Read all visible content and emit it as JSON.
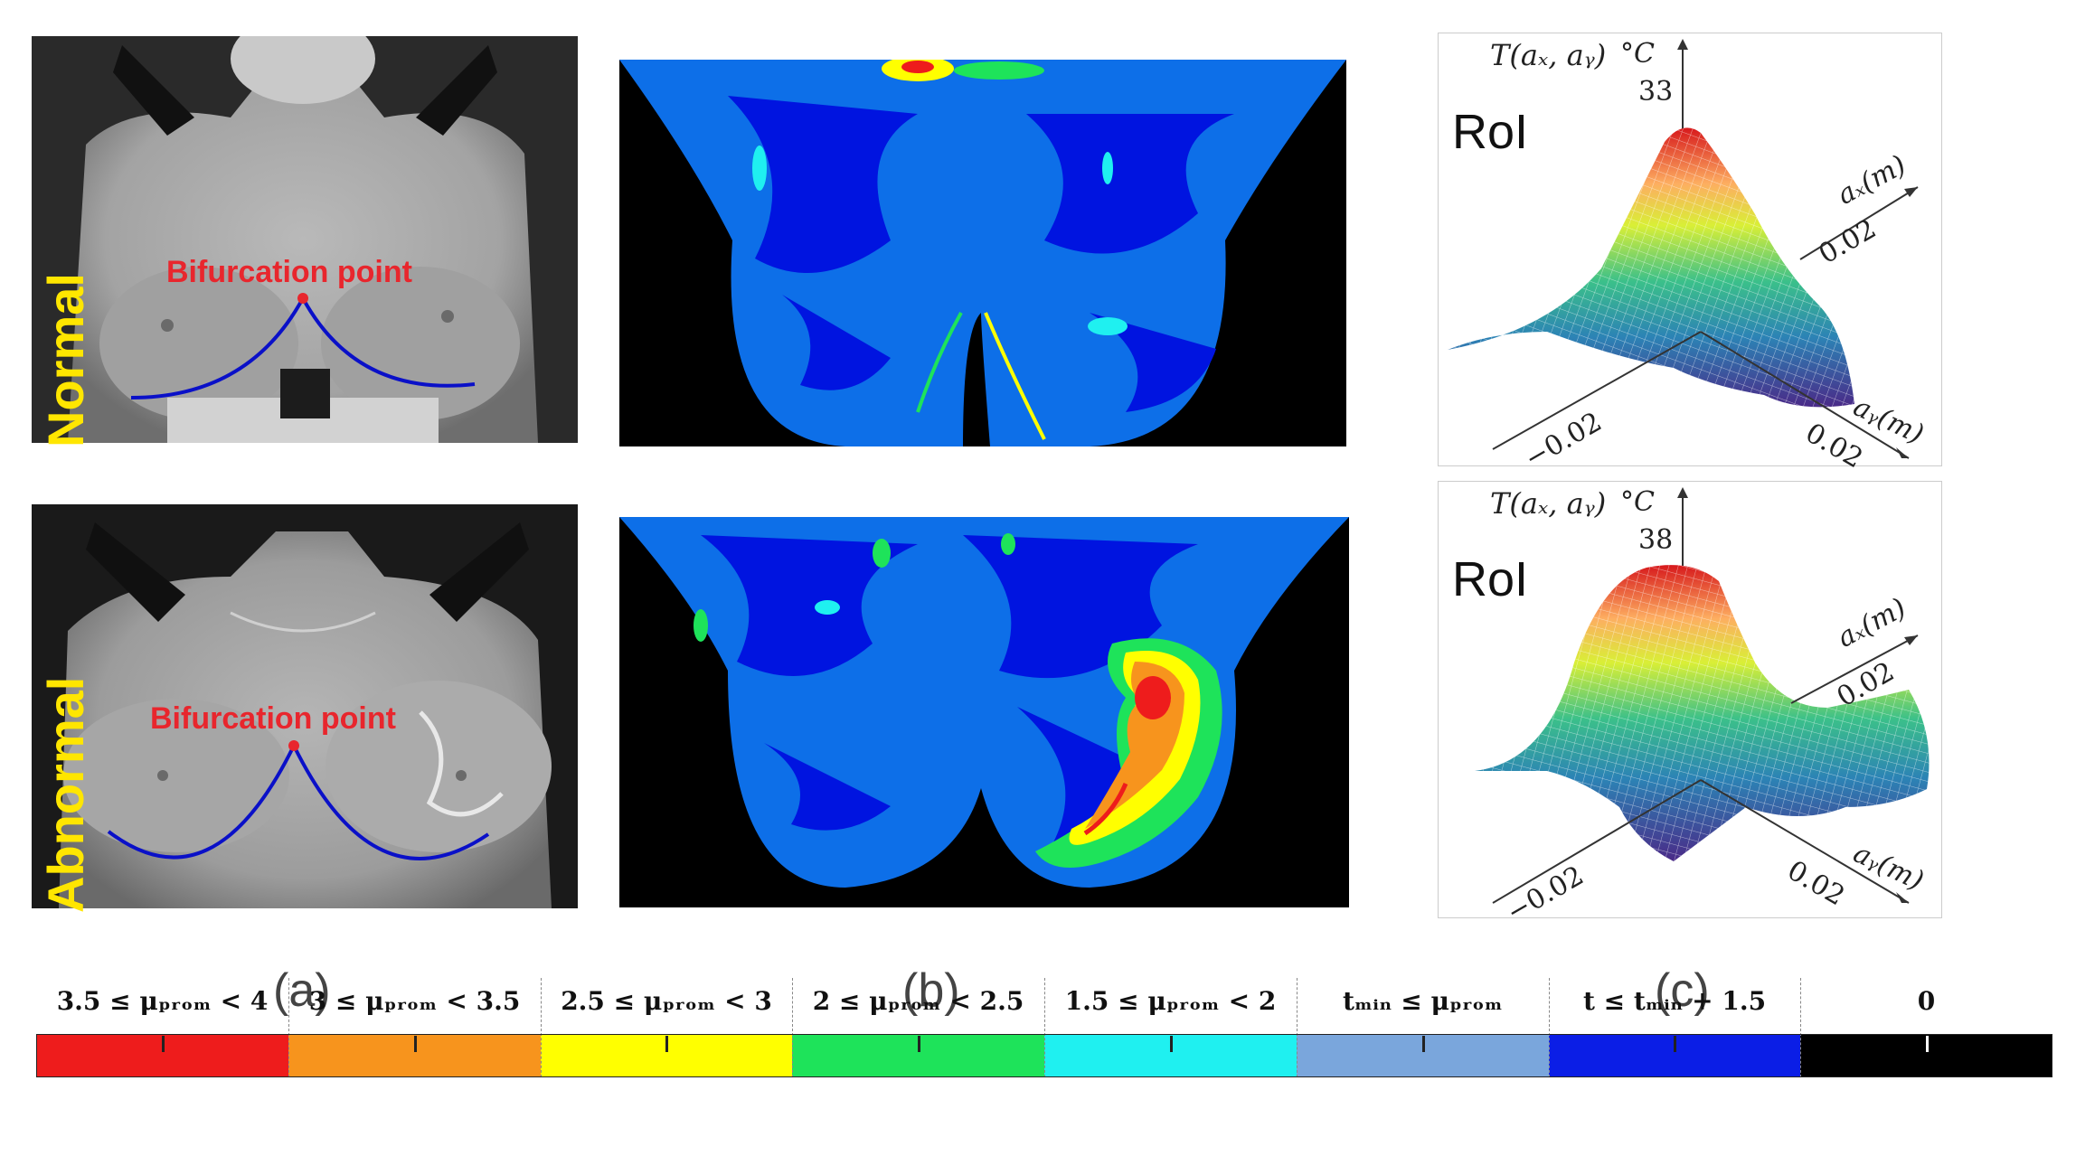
{
  "row_labels": {
    "normal": "Normal",
    "abnormal": "Abnormal"
  },
  "bifurcation_label": "Bifurcation point",
  "panel_letters": {
    "a": "(a)",
    "b": "(b)",
    "c": "(c)"
  },
  "plot_top": {
    "roi": "RoI",
    "z_label": "T(aₓ, aᵧ)",
    "unit": "°C",
    "z_max": "33",
    "x_axis": "aₓ(m)",
    "y_axis": "aᵧ(m)",
    "tick_x": "0.02",
    "tick_neg": "−0.02",
    "tick_y": "0.02"
  },
  "plot_bottom": {
    "roi": "RoI",
    "z_label": "T(aₓ, aᵧ)",
    "unit": "°C",
    "z_max": "38",
    "x_axis": "aₓ(m)",
    "y_axis": "aᵧ(m)",
    "tick_x": "0.02",
    "tick_neg": "−0.02",
    "tick_y": "0.02"
  },
  "legend": [
    {
      "label": "3.5 ≤ μₚᵣₒₘ < 4",
      "color": "#ee1c1c"
    },
    {
      "label": "3 ≤ μₚᵣₒₘ < 3.5",
      "color": "#f7941d"
    },
    {
      "label": "2.5 ≤ μₚᵣₒₘ < 3",
      "color": "#ffff00"
    },
    {
      "label": "2 ≤ μₚᵣₒₘ < 2.5",
      "color": "#1ee35a"
    },
    {
      "label": "1.5 ≤ μₚᵣₒₘ < 2",
      "color": "#1ff0f0"
    },
    {
      "label": "tₘᵢₙ ≤ μₚᵣₒₘ",
      "color": "#7aa6dc"
    },
    {
      "label": "t ≤ tₘᵢₙ + 1.5",
      "color": "#0b1ee6"
    },
    {
      "label": "0",
      "color": "#000000"
    }
  ]
}
